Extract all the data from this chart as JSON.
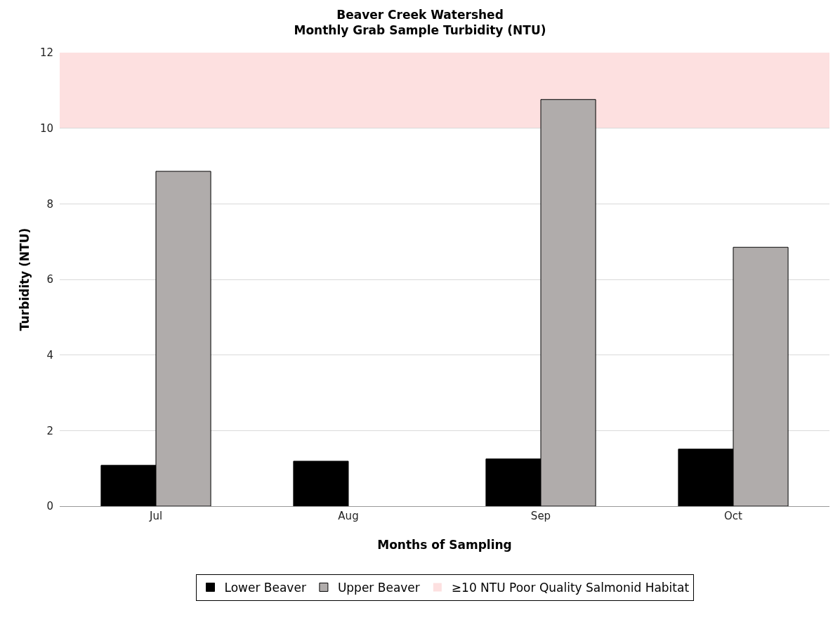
{
  "chart_data": {
    "type": "bar",
    "title": "Beaver Creek Watershed\nMonthly Grab Sample Turbidity (NTU)",
    "xlabel": "Months of Sampling",
    "ylabel": "Turbidity (NTU)",
    "categories": [
      "Jul",
      "Aug",
      "Sep",
      "Oct"
    ],
    "series": [
      {
        "name": "Lower Beaver",
        "color": "#000000",
        "values": [
          1.08,
          1.19,
          1.25,
          1.51
        ]
      },
      {
        "name": "Upper Beaver",
        "color": "#b0acab",
        "values": [
          8.86,
          null,
          10.76,
          6.85
        ]
      }
    ],
    "ylim": [
      0,
      12
    ],
    "yticks": [
      0,
      2,
      4,
      6,
      8,
      10,
      12
    ],
    "grid": "y",
    "legend": "bottom",
    "bands": [
      {
        "axis": "y",
        "from": 10,
        "to": 12,
        "label": "≥10 NTU Poor Quality Salmonid Habitat",
        "color": "#fde0e0"
      }
    ]
  }
}
